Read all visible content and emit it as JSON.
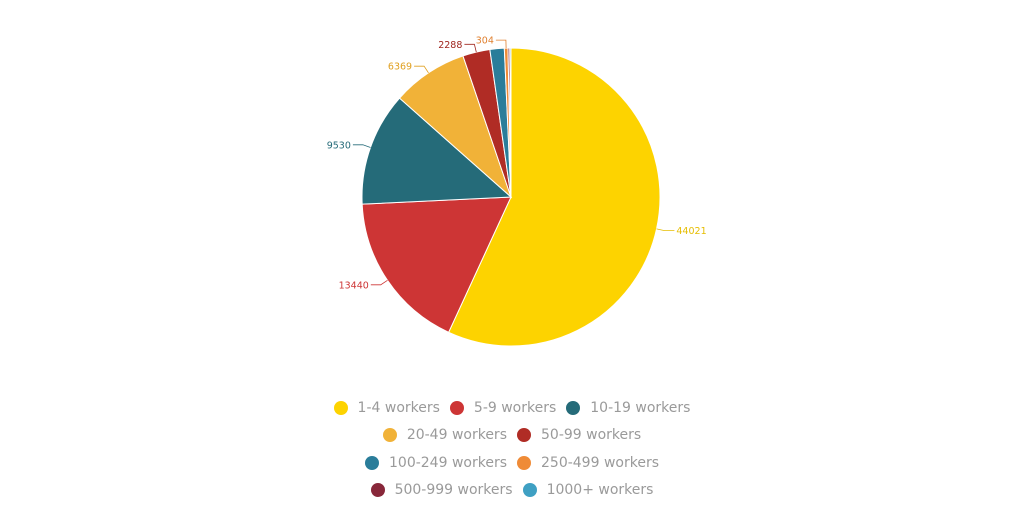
{
  "chart_data": {
    "type": "pie",
    "categories": [
      "1-4 workers",
      "5-9 workers",
      "10-19 workers",
      "20-49 workers",
      "50-99 workers",
      "100-249 workers",
      "250-499 workers",
      "500-999 workers",
      "1000+ workers"
    ],
    "values": [
      44021,
      13440,
      9530,
      6369,
      2288,
      1200,
      304,
      150,
      100
    ],
    "data_labels": [
      "44021",
      "13440",
      "9530",
      "6369",
      "2288",
      "",
      "304",
      "",
      ""
    ],
    "colors": [
      "#fdd300",
      "#cd3535",
      "#256b79",
      "#f1b238",
      "#b02c25",
      "#2a7d9a",
      "#ef8b37",
      "#88273a",
      "#3fa0c3"
    ],
    "label_colors": [
      "#e6bd00",
      "#cd3535",
      "#256b79",
      "#e0a020",
      "#a0261f",
      "#2a7d9a",
      "#e08030",
      "#88273a",
      "#3fa0c3"
    ],
    "legend_placement": "bottom",
    "legend_rows": [
      [
        0,
        1,
        2
      ],
      [
        3,
        4
      ],
      [
        5,
        6
      ],
      [
        7,
        8
      ]
    ]
  }
}
